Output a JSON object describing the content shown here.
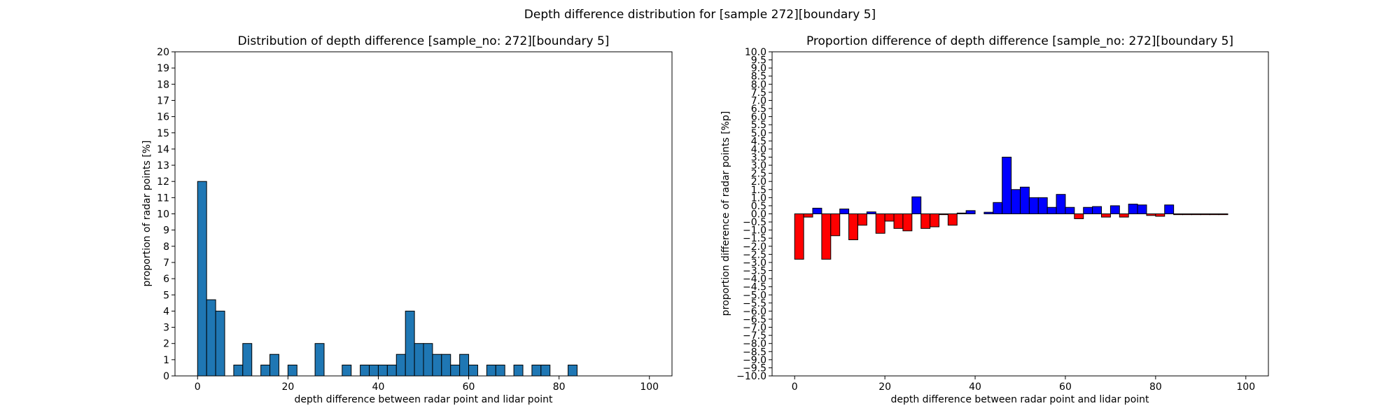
{
  "figure": {
    "suptitle": "Depth difference distribution for [sample 272][boundary 5]"
  },
  "chart_data": [
    {
      "type": "bar",
      "title": "Distribution of depth difference [sample_no: 272][boundary 5]",
      "xlabel": "depth difference between radar point and lidar point",
      "ylabel": "proportion of radar points [%]",
      "xlim": [
        -5,
        105
      ],
      "ylim": [
        0,
        20
      ],
      "x_ticks": [
        0,
        20,
        40,
        60,
        80,
        100
      ],
      "y_ticks": [
        0,
        1,
        2,
        3,
        4,
        5,
        6,
        7,
        8,
        9,
        10,
        11,
        12,
        13,
        14,
        15,
        16,
        17,
        18,
        19,
        20
      ],
      "bin_width": 2,
      "bin_starts": [
        0,
        2,
        4,
        6,
        8,
        10,
        12,
        14,
        16,
        18,
        20,
        22,
        24,
        26,
        28,
        30,
        32,
        34,
        36,
        38,
        40,
        42,
        44,
        46,
        48,
        50,
        52,
        54,
        56,
        58,
        60,
        62,
        64,
        66,
        68,
        70,
        72,
        74,
        76,
        78,
        80,
        82,
        84,
        86,
        88,
        90,
        92,
        94,
        96,
        98
      ],
      "values": [
        12.0,
        4.7,
        4.0,
        0,
        0.67,
        2.0,
        0,
        0.67,
        1.33,
        0,
        0.67,
        0,
        0,
        2.0,
        0,
        0,
        0.67,
        0,
        0.67,
        0.67,
        0.67,
        0.67,
        1.33,
        4.0,
        2.0,
        2.0,
        1.33,
        1.33,
        0.67,
        1.33,
        0.67,
        0,
        0.67,
        0.67,
        0,
        0.67,
        0,
        0.67,
        0.67,
        0,
        0,
        0.67,
        0,
        0,
        0,
        0,
        0,
        0,
        0,
        0
      ],
      "colors": {
        "bar": "#1f77b4",
        "edge": "#000000"
      },
      "grid": false
    },
    {
      "type": "bar",
      "title": "Proportion difference of depth difference [sample_no: 272][boundary 5]",
      "xlabel": "depth difference between radar point and lidar point",
      "ylabel": "proportion difference of radar points [%p]",
      "xlim": [
        -5,
        105
      ],
      "ylim": [
        -10,
        10
      ],
      "x_ticks": [
        0,
        20,
        40,
        60,
        80,
        100
      ],
      "y_ticks": [
        -10,
        -9.5,
        -9,
        -8.5,
        -8,
        -7.5,
        -7,
        -6.5,
        -6,
        -5.5,
        -5,
        -4.5,
        -4,
        -3.5,
        -3,
        -2.5,
        -2,
        -1.5,
        -1,
        -0.5,
        0,
        0.5,
        1,
        1.5,
        2,
        2.5,
        3,
        3.5,
        4,
        4.5,
        5,
        5.5,
        6,
        6.5,
        7,
        7.5,
        8,
        8.5,
        9,
        9.5,
        10
      ],
      "y_tick_labels": [
        "−10.0",
        "−9.5",
        "−9.0",
        "−8.5",
        "−8.0",
        "−7.5",
        "−7.0",
        "−6.5",
        "−6.0",
        "−5.5",
        "−5.0",
        "−4.5",
        "−4.0",
        "−3.5",
        "−3.0",
        "−2.5",
        "−2.0",
        "−1.5",
        "−1.0",
        "−0.5",
        "0.0",
        "0.5",
        "1.0",
        "1.5",
        "2.0",
        "2.5",
        "3.0",
        "3.5",
        "4.0",
        "4.5",
        "5.0",
        "5.5",
        "6.0",
        "6.5",
        "7.0",
        "7.5",
        "8.0",
        "8.5",
        "9.0",
        "9.5",
        "10.0"
      ],
      "bin_width": 2,
      "bin_starts": [
        0,
        2,
        4,
        6,
        8,
        10,
        12,
        14,
        16,
        18,
        20,
        22,
        24,
        26,
        28,
        30,
        32,
        34,
        36,
        38,
        40,
        42,
        44,
        46,
        48,
        50,
        52,
        54,
        56,
        58,
        60,
        62,
        64,
        66,
        68,
        70,
        72,
        74,
        76,
        78,
        80,
        82,
        84,
        86,
        88,
        90,
        92,
        94,
        96,
        98
      ],
      "values": [
        -2.8,
        -0.2,
        0.35,
        -2.8,
        -1.35,
        0.3,
        -1.6,
        -0.7,
        0.12,
        -1.2,
        -0.45,
        -0.9,
        -1.05,
        1.05,
        -0.9,
        -0.8,
        -0.05,
        -0.7,
        0.05,
        0.2,
        0,
        0.1,
        0.7,
        3.5,
        1.5,
        1.65,
        1.0,
        1.0,
        0.4,
        1.2,
        0.4,
        -0.3,
        0.4,
        0.45,
        -0.2,
        0.5,
        -0.2,
        0.6,
        0.55,
        -0.1,
        -0.15,
        0.55,
        -0.05,
        -0.05,
        -0.05,
        -0.05,
        -0.05,
        -0.05,
        0,
        0
      ],
      "colors": {
        "positive": "#0000ff",
        "negative": "#ff0000",
        "edge": "#000000"
      },
      "grid": false
    }
  ]
}
